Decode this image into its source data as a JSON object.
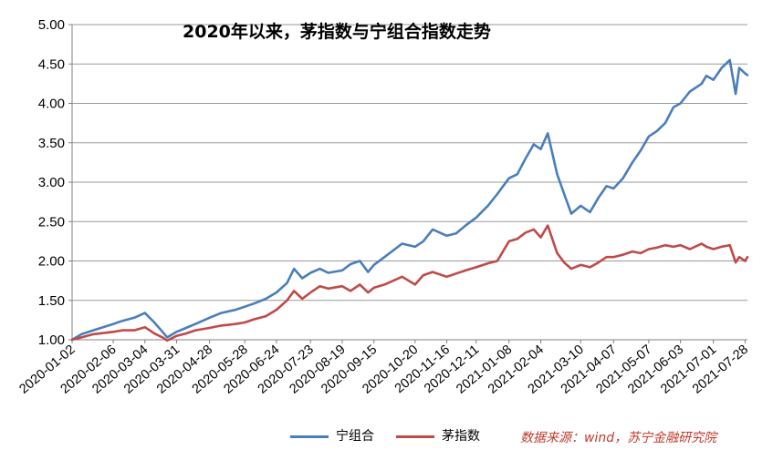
{
  "chart_data": {
    "type": "line",
    "title": "2020年以来，茅指数与宁组合指数走势",
    "source": "数据来源：wind，苏宁金融研究院",
    "xlabel": "",
    "ylabel": "",
    "ylim": [
      1.0,
      5.0
    ],
    "yticks": [
      "1.00",
      "1.50",
      "2.00",
      "2.50",
      "3.00",
      "3.50",
      "4.00",
      "4.50",
      "5.00"
    ],
    "ytick_values": [
      1.0,
      1.5,
      2.0,
      2.5,
      3.0,
      3.5,
      4.0,
      4.5,
      5.0
    ],
    "x_tick_labels": [
      "2020-01-02",
      "2020-02-06",
      "2020-03-04",
      "2020-03-31",
      "2020-04-28",
      "2020-05-28",
      "2020-06-24",
      "2020-07-23",
      "2020-08-19",
      "2020-09-15",
      "2020-10-20",
      "2020-11-16",
      "2020-12-11",
      "2021-01-08",
      "2021-02-04",
      "2021-03-10",
      "2021-04-07",
      "2021-05-07",
      "2021-06-03",
      "2021-07-01",
      "2021-07-28"
    ],
    "grid": true,
    "legend_position": "bottom",
    "series": [
      {
        "name": "宁组合",
        "color": "#4a7ebb",
        "x": [
          "2020-01-02",
          "2020-01-10",
          "2020-01-20",
          "2020-02-06",
          "2020-02-14",
          "2020-02-24",
          "2020-03-04",
          "2020-03-12",
          "2020-03-19",
          "2020-03-23",
          "2020-03-31",
          "2020-04-08",
          "2020-04-16",
          "2020-04-28",
          "2020-05-08",
          "2020-05-20",
          "2020-05-28",
          "2020-06-05",
          "2020-06-15",
          "2020-06-24",
          "2020-07-03",
          "2020-07-09",
          "2020-07-16",
          "2020-07-23",
          "2020-07-31",
          "2020-08-07",
          "2020-08-19",
          "2020-08-26",
          "2020-09-03",
          "2020-09-10",
          "2020-09-15",
          "2020-09-24",
          "2020-10-09",
          "2020-10-20",
          "2020-10-27",
          "2020-11-04",
          "2020-11-16",
          "2020-11-24",
          "2020-12-02",
          "2020-12-11",
          "2020-12-21",
          "2020-12-29",
          "2021-01-08",
          "2021-01-15",
          "2021-01-22",
          "2021-01-29",
          "2021-02-04",
          "2021-02-10",
          "2021-02-18",
          "2021-02-24",
          "2021-03-02",
          "2021-03-10",
          "2021-03-18",
          "2021-03-25",
          "2021-04-01",
          "2021-04-07",
          "2021-04-15",
          "2021-04-23",
          "2021-04-30",
          "2021-05-07",
          "2021-05-14",
          "2021-05-21",
          "2021-05-28",
          "2021-06-03",
          "2021-06-11",
          "2021-06-21",
          "2021-06-25",
          "2021-07-01",
          "2021-07-08",
          "2021-07-15",
          "2021-07-20",
          "2021-07-23",
          "2021-07-28",
          "2021-07-30"
        ],
        "values": [
          1.0,
          1.07,
          1.12,
          1.2,
          1.24,
          1.28,
          1.34,
          1.22,
          1.1,
          1.03,
          1.1,
          1.15,
          1.2,
          1.28,
          1.34,
          1.38,
          1.42,
          1.46,
          1.52,
          1.6,
          1.72,
          1.9,
          1.78,
          1.85,
          1.9,
          1.85,
          1.88,
          1.96,
          2.0,
          1.86,
          1.95,
          2.05,
          2.22,
          2.18,
          2.25,
          2.4,
          2.32,
          2.35,
          2.45,
          2.55,
          2.7,
          2.85,
          3.05,
          3.1,
          3.3,
          3.48,
          3.42,
          3.62,
          3.1,
          2.85,
          2.6,
          2.7,
          2.62,
          2.8,
          2.95,
          2.92,
          3.05,
          3.25,
          3.4,
          3.58,
          3.65,
          3.75,
          3.95,
          4.0,
          4.15,
          4.25,
          4.35,
          4.3,
          4.45,
          4.55,
          4.12,
          4.45,
          4.38,
          4.36
        ]
      },
      {
        "name": "茅指数",
        "color": "#be4b48",
        "x": [
          "2020-01-02",
          "2020-01-10",
          "2020-01-20",
          "2020-02-06",
          "2020-02-14",
          "2020-02-24",
          "2020-03-04",
          "2020-03-12",
          "2020-03-19",
          "2020-03-23",
          "2020-03-31",
          "2020-04-08",
          "2020-04-16",
          "2020-04-28",
          "2020-05-08",
          "2020-05-20",
          "2020-05-28",
          "2020-06-05",
          "2020-06-15",
          "2020-06-24",
          "2020-07-03",
          "2020-07-09",
          "2020-07-16",
          "2020-07-23",
          "2020-07-31",
          "2020-08-07",
          "2020-08-19",
          "2020-08-26",
          "2020-09-03",
          "2020-09-10",
          "2020-09-15",
          "2020-09-24",
          "2020-10-09",
          "2020-10-20",
          "2020-10-27",
          "2020-11-04",
          "2020-11-16",
          "2020-11-24",
          "2020-12-02",
          "2020-12-11",
          "2020-12-21",
          "2020-12-29",
          "2021-01-08",
          "2021-01-15",
          "2021-01-22",
          "2021-01-29",
          "2021-02-04",
          "2021-02-10",
          "2021-02-18",
          "2021-02-24",
          "2021-03-02",
          "2021-03-10",
          "2021-03-18",
          "2021-03-25",
          "2021-04-01",
          "2021-04-07",
          "2021-04-15",
          "2021-04-23",
          "2021-04-30",
          "2021-05-07",
          "2021-05-14",
          "2021-05-21",
          "2021-05-28",
          "2021-06-03",
          "2021-06-11",
          "2021-06-21",
          "2021-06-25",
          "2021-07-01",
          "2021-07-08",
          "2021-07-15",
          "2021-07-20",
          "2021-07-23",
          "2021-07-28",
          "2021-07-30"
        ],
        "values": [
          1.0,
          1.03,
          1.07,
          1.1,
          1.12,
          1.12,
          1.16,
          1.08,
          1.03,
          0.99,
          1.05,
          1.08,
          1.12,
          1.15,
          1.18,
          1.2,
          1.22,
          1.26,
          1.3,
          1.38,
          1.5,
          1.62,
          1.52,
          1.6,
          1.68,
          1.65,
          1.68,
          1.62,
          1.7,
          1.6,
          1.66,
          1.7,
          1.8,
          1.7,
          1.82,
          1.86,
          1.8,
          1.84,
          1.88,
          1.92,
          1.97,
          2.0,
          2.25,
          2.28,
          2.36,
          2.4,
          2.3,
          2.45,
          2.1,
          1.98,
          1.9,
          1.95,
          1.92,
          1.98,
          2.05,
          2.05,
          2.08,
          2.12,
          2.1,
          2.15,
          2.17,
          2.2,
          2.18,
          2.2,
          2.15,
          2.22,
          2.18,
          2.15,
          2.18,
          2.2,
          1.98,
          2.05,
          2.0,
          2.05
        ]
      }
    ]
  }
}
